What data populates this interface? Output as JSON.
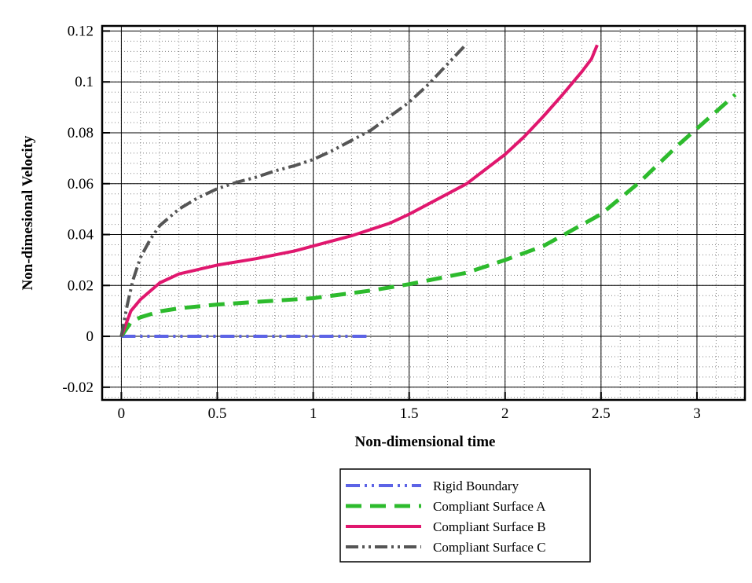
{
  "chart_data": {
    "type": "line",
    "title": "",
    "xlabel": "Non-dimensional time",
    "ylabel": "Non-dimesional Velocity",
    "xlim": [
      -0.1,
      3.25
    ],
    "ylim": [
      -0.025,
      0.122
    ],
    "x_ticks": [
      0,
      0.5,
      1,
      1.5,
      2,
      2.5,
      3
    ],
    "x_tick_labels": [
      "0",
      "0.5",
      "1",
      "1.5",
      "2",
      "2.5",
      "3"
    ],
    "y_ticks": [
      -0.02,
      0,
      0.02,
      0.04,
      0.06,
      0.08,
      0.1,
      0.12
    ],
    "y_tick_labels": [
      "-0.02",
      "0",
      "0.02",
      "0.04",
      "0.06",
      "0.08",
      "0.1",
      "0.12"
    ],
    "grid": true,
    "legend_position": "below",
    "series": [
      {
        "name": "Rigid Boundary",
        "color": "#5c63e6",
        "dash": "18,6,3,6,3,6",
        "width": 4,
        "x": [
          0,
          0.25,
          0.5,
          0.75,
          1.0,
          1.3
        ],
        "y": [
          0,
          0,
          0,
          0,
          0,
          0
        ]
      },
      {
        "name": "Compliant Surface A",
        "color": "#2dbb2d",
        "dash": "20,11",
        "width": 5,
        "x": [
          0,
          0.05,
          0.1,
          0.2,
          0.3,
          0.5,
          0.7,
          1.0,
          1.3,
          1.5,
          1.8,
          2.0,
          2.2,
          2.5,
          2.7,
          2.9,
          3.05,
          3.2
        ],
        "y": [
          0,
          0.0055,
          0.0075,
          0.0098,
          0.011,
          0.0125,
          0.0135,
          0.015,
          0.018,
          0.0205,
          0.025,
          0.03,
          0.0355,
          0.048,
          0.0605,
          0.075,
          0.085,
          0.095
        ]
      },
      {
        "name": "Compliant Surface B",
        "color": "#e0176e",
        "dash": "",
        "width": 4,
        "x": [
          0,
          0.05,
          0.1,
          0.2,
          0.3,
          0.5,
          0.7,
          0.9,
          1.0,
          1.2,
          1.4,
          1.5,
          1.6,
          1.8,
          2.0,
          2.1,
          2.2,
          2.3,
          2.4,
          2.45,
          2.48
        ],
        "y": [
          0,
          0.01,
          0.0145,
          0.021,
          0.0245,
          0.028,
          0.0305,
          0.0335,
          0.0355,
          0.0395,
          0.0445,
          0.048,
          0.052,
          0.06,
          0.0715,
          0.0785,
          0.0865,
          0.095,
          0.104,
          0.109,
          0.1145
        ]
      },
      {
        "name": "Compliant Surface C",
        "color": "#555555",
        "dash": "16,5,3,5,3,5",
        "width": 4,
        "x": [
          0,
          0.03,
          0.06,
          0.1,
          0.15,
          0.2,
          0.3,
          0.4,
          0.5,
          0.6,
          0.7,
          0.8,
          0.9,
          1.0,
          1.1,
          1.2,
          1.3,
          1.4,
          1.5,
          1.6,
          1.7,
          1.8
        ],
        "y": [
          0,
          0.012,
          0.022,
          0.031,
          0.038,
          0.0435,
          0.05,
          0.0545,
          0.058,
          0.0605,
          0.0625,
          0.065,
          0.067,
          0.0695,
          0.073,
          0.077,
          0.081,
          0.0865,
          0.092,
          0.099,
          0.107,
          0.115
        ]
      }
    ]
  }
}
